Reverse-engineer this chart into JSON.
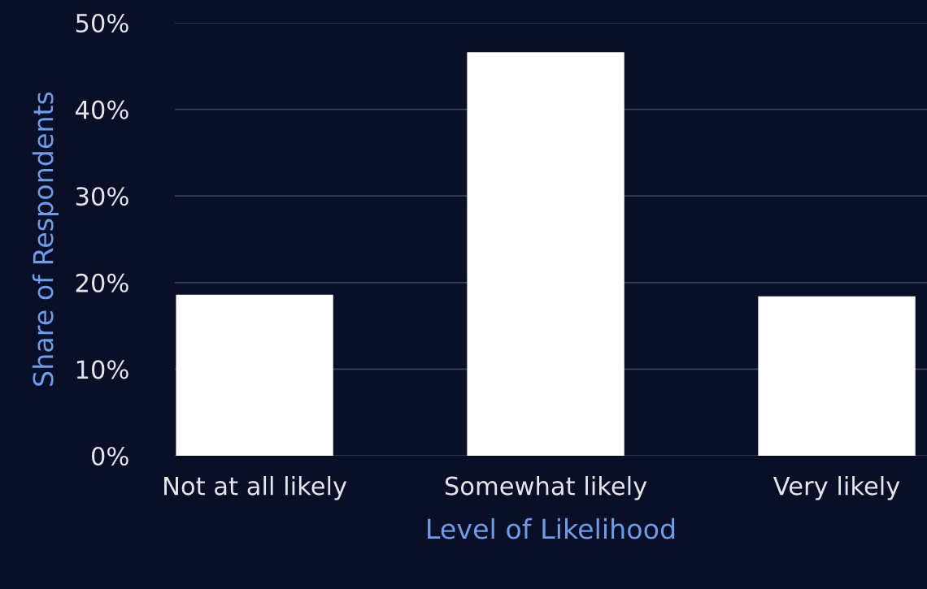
{
  "chart_data": {
    "type": "bar",
    "xlabel": "Level of Likelihood",
    "ylabel": "Share of Respondents",
    "categories": [
      "Not at all likely",
      "Somewhat likely",
      "Very likely"
    ],
    "values": [
      18.6,
      46.6,
      18.4
    ],
    "color": "#ffffff",
    "ylim": [
      0,
      50
    ],
    "yticks": [
      {
        "value": 0,
        "label": "0%"
      },
      {
        "value": 10,
        "label": "10%"
      },
      {
        "value": 20,
        "label": "20%"
      },
      {
        "value": 30,
        "label": "30%"
      },
      {
        "value": 40,
        "label": "40%"
      },
      {
        "value": 50,
        "label": "50%"
      }
    ],
    "grid": "y"
  }
}
